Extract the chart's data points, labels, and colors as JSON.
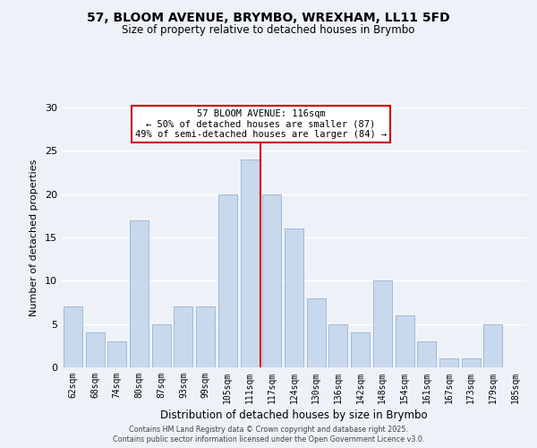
{
  "title_line1": "57, BLOOM AVENUE, BRYMBO, WREXHAM, LL11 5FD",
  "title_line2": "Size of property relative to detached houses in Brymbo",
  "xlabel": "Distribution of detached houses by size in Brymbo",
  "ylabel": "Number of detached properties",
  "bar_labels": [
    "62sqm",
    "68sqm",
    "74sqm",
    "80sqm",
    "87sqm",
    "93sqm",
    "99sqm",
    "105sqm",
    "111sqm",
    "117sqm",
    "124sqm",
    "130sqm",
    "136sqm",
    "142sqm",
    "148sqm",
    "154sqm",
    "161sqm",
    "167sqm",
    "173sqm",
    "179sqm",
    "185sqm"
  ],
  "bar_values": [
    7,
    4,
    3,
    17,
    5,
    7,
    7,
    20,
    24,
    20,
    16,
    8,
    5,
    4,
    10,
    6,
    3,
    1,
    1,
    5,
    0
  ],
  "bar_color": "#c8d9ed",
  "bar_edgecolor": "#a0b8d8",
  "vline_color": "#cc0000",
  "annotation_title": "57 BLOOM AVENUE: 116sqm",
  "annotation_line1": "← 50% of detached houses are smaller (87)",
  "annotation_line2": "49% of semi-detached houses are larger (84) →",
  "ylim": [
    0,
    30
  ],
  "yticks": [
    0,
    5,
    10,
    15,
    20,
    25,
    30
  ],
  "footer_line1": "Contains HM Land Registry data © Crown copyright and database right 2025.",
  "footer_line2": "Contains public sector information licensed under the Open Government Licence v3.0.",
  "background_color": "#eef2f8",
  "grid_color": "#ffffff"
}
